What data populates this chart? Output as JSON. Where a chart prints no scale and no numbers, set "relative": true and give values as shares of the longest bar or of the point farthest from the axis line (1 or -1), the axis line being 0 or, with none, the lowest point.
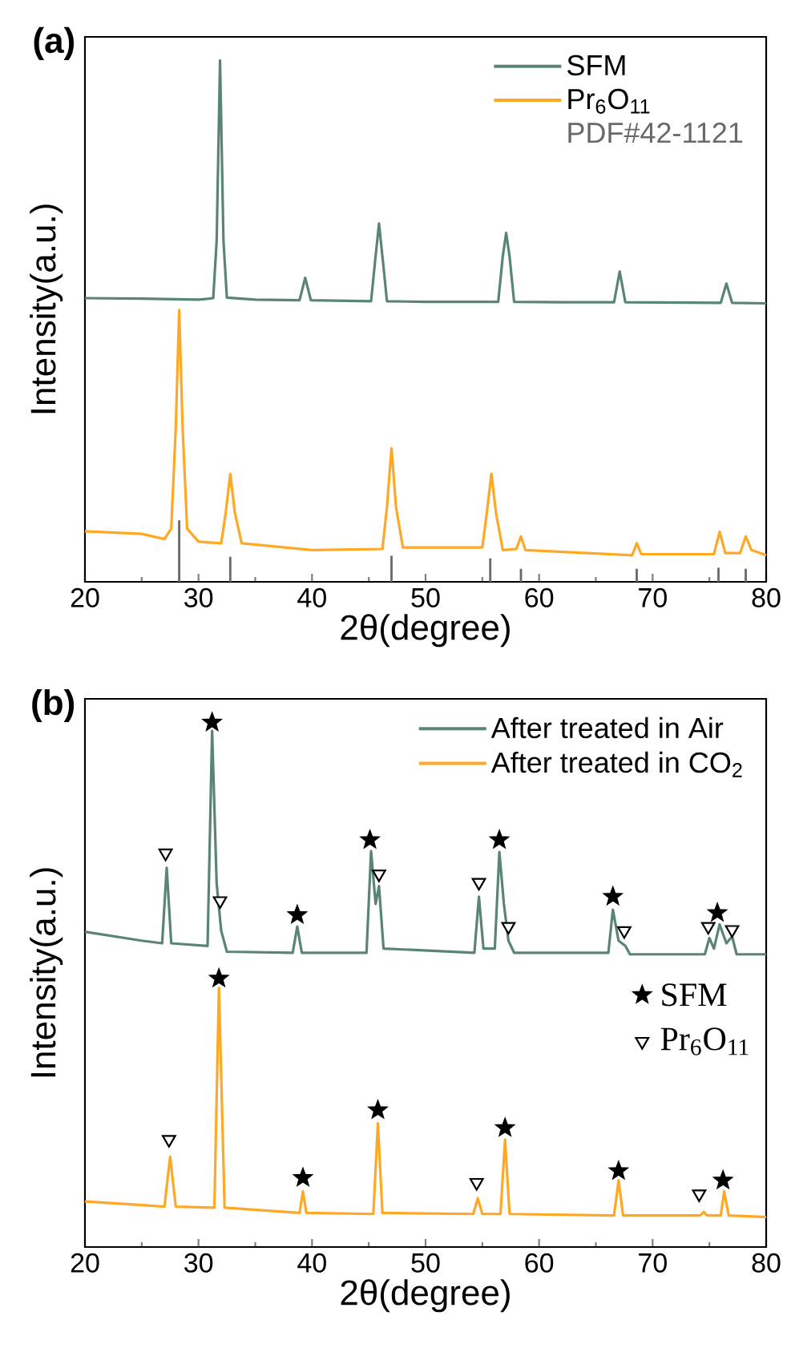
{
  "chart_data": [
    {
      "type": "line",
      "title": "(a)",
      "xlabel": "2θ(degree)",
      "ylabel": "Intensity(a.u.)",
      "relative": true,
      "xlim": [
        20,
        80
      ],
      "xticks": [
        20,
        30,
        40,
        50,
        60,
        70,
        80
      ],
      "legend": "top right",
      "series": [
        {
          "name": "SFM",
          "color": "#5a8575",
          "x": [
            20,
            25,
            30,
            31.3,
            31.6,
            31.9,
            32.2,
            32.5,
            35,
            38.9,
            39.4,
            39.9,
            45.2,
            45.5,
            45.9,
            46.3,
            46.6,
            50,
            56.4,
            56.8,
            57.1,
            57.4,
            57.8,
            62,
            66.6,
            67.1,
            67.6,
            76,
            76.5,
            77,
            80
          ],
          "values": [
            0.544,
            0.543,
            0.541,
            0.544,
            0.654,
            1.0,
            0.654,
            0.545,
            0.541,
            0.54,
            0.583,
            0.54,
            0.538,
            0.603,
            0.687,
            0.603,
            0.538,
            0.537,
            0.537,
            0.624,
            0.669,
            0.624,
            0.537,
            0.536,
            0.536,
            0.595,
            0.536,
            0.535,
            0.572,
            0.535,
            0.534
          ]
        },
        {
          "name": "Pr$_{6}$O$_{11}$",
          "color": "#ffa826",
          "x": [
            20,
            25,
            27,
            27.6,
            28.0,
            28.3,
            28.6,
            29,
            30,
            32,
            32.4,
            32.8,
            33.2,
            33.8,
            40,
            46.2,
            46.6,
            47.0,
            47.4,
            48,
            55,
            55.4,
            55.8,
            56.2,
            56.8,
            58.0,
            58.4,
            58.8,
            68.2,
            68.6,
            69.0,
            75.4,
            75.9,
            76.4,
            77.7,
            78.2,
            78.7,
            80
          ],
          "values": [
            0.097,
            0.092,
            0.082,
            0.102,
            0.297,
            0.521,
            0.297,
            0.102,
            0.077,
            0.074,
            0.133,
            0.207,
            0.133,
            0.074,
            0.061,
            0.063,
            0.143,
            0.256,
            0.143,
            0.066,
            0.066,
            0.133,
            0.207,
            0.133,
            0.061,
            0.063,
            0.087,
            0.061,
            0.051,
            0.074,
            0.053,
            0.053,
            0.096,
            0.055,
            0.055,
            0.087,
            0.061,
            0.051
          ]
        },
        {
          "name": "PDF#42-1121",
          "type": "bar",
          "color": "#696969",
          "x": [
            28.3,
            32.8,
            47.0,
            55.7,
            58.4,
            68.6,
            75.8,
            78.2
          ],
          "values": [
            0.118,
            0.048,
            0.05,
            0.045,
            0.025,
            0.025,
            0.027,
            0.025
          ]
        }
      ]
    },
    {
      "type": "line",
      "title": "(b)",
      "xlabel": "2θ(degree)",
      "ylabel": "Intensity(a.u.)",
      "relative": true,
      "xlim": [
        20,
        80
      ],
      "xticks": [
        20,
        30,
        40,
        50,
        60,
        70,
        80
      ],
      "legend": "top right",
      "series": [
        {
          "name": "After treated in Air",
          "color": "#5a8575",
          "x": [
            20,
            25,
            26.8,
            27.2,
            27.6,
            30.8,
            31.2,
            31.6,
            32.0,
            32.5,
            38.3,
            38.7,
            39.1,
            44.8,
            45.2,
            45.6,
            45.9,
            46.3,
            54.3,
            54.7,
            55.1,
            56.1,
            56.5,
            56.9,
            57.3,
            57.8,
            66.1,
            66.5,
            67,
            67.6,
            68,
            74.6,
            75,
            75.4,
            75.9,
            76.5,
            77.0,
            77.4,
            80
          ],
          "values": [
            0.601,
            0.584,
            0.579,
            0.723,
            0.579,
            0.574,
            0.984,
            0.693,
            0.603,
            0.563,
            0.561,
            0.611,
            0.561,
            0.561,
            0.755,
            0.654,
            0.688,
            0.569,
            0.561,
            0.668,
            0.569,
            0.569,
            0.753,
            0.654,
            0.584,
            0.561,
            0.561,
            0.643,
            0.584,
            0.574,
            0.558,
            0.558,
            0.589,
            0.569,
            0.615,
            0.579,
            0.592,
            0.558,
            0.558
          ]
        },
        {
          "name": "After treated in CO$_{2}$",
          "color": "#ffa826",
          "x": [
            20,
            25,
            27,
            27.5,
            28,
            31.4,
            31.8,
            32.3,
            38.9,
            39.2,
            39.5,
            45.4,
            45.8,
            46.2,
            54.2,
            54.6,
            55,
            56.6,
            57,
            57.4,
            66.6,
            67,
            67.4,
            74.2,
            74.5,
            74.8,
            76,
            76.3,
            76.7,
            80
          ],
          "values": [
            0.087,
            0.08,
            0.077,
            0.172,
            0.077,
            0.075,
            0.494,
            0.075,
            0.065,
            0.106,
            0.065,
            0.063,
            0.236,
            0.065,
            0.063,
            0.093,
            0.063,
            0.063,
            0.205,
            0.063,
            0.06,
            0.127,
            0.06,
            0.06,
            0.067,
            0.06,
            0.06,
            0.106,
            0.06,
            0.057
          ]
        },
        {
          "name": "SFM",
          "type": "scatter",
          "marker": "star",
          "color": "#000000",
          "x": [
            31.2,
            38.7,
            45.1,
            56.5,
            66.5,
            75.7,
            31.8,
            39.2,
            45.8,
            57.0,
            67.0,
            76.2
          ],
          "values": [
            1.0,
            0.633,
            0.776,
            0.776,
            0.668,
            0.637,
            0.512,
            0.132,
            0.261,
            0.227,
            0.145,
            0.127
          ]
        },
        {
          "name": "Pr$_{6}$O$_{11}$",
          "type": "scatter",
          "marker": "triangle",
          "color": "#000000",
          "x": [
            27.1,
            31.9,
            45.9,
            54.7,
            57.3,
            67.5,
            74.9,
            77.0,
            27.4,
            54.5,
            74.1
          ],
          "values": [
            0.751,
            0.66,
            0.711,
            0.695,
            0.611,
            0.603,
            0.611,
            0.605,
            0.205,
            0.123,
            0.101
          ]
        }
      ]
    }
  ]
}
